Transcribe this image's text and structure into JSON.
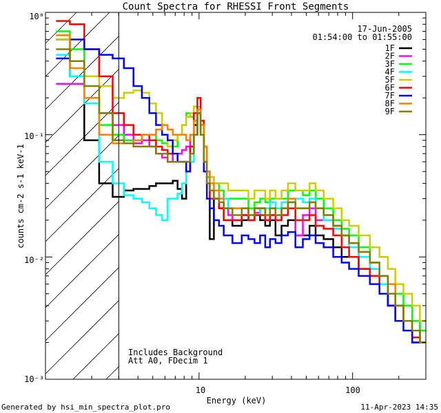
{
  "chart_data": {
    "type": "line",
    "title": "Count Spectra for RHESSI Front Segments",
    "xlabel": "Energy (keV)",
    "ylabel": "counts cm-2 s-1 keV-1",
    "xscale": "log",
    "yscale": "log",
    "xlim": [
      1.0,
      300.0
    ],
    "ylim": [
      0.001,
      1.0
    ],
    "x_tick_labels": [
      "10",
      "100"
    ],
    "y_tick_labels": [
      "10⁻³",
      "10⁻²",
      "10⁻¹",
      "10⁰"
    ],
    "date_text": "17-Jun-2005",
    "time_range_text": "01:54:00 to 01:55:00",
    "background_note": "Includes Background",
    "attenuator_note": "Att A0, FDecim 1",
    "footer_left": "Generated by hsi_min_spectra_plot.pro",
    "footer_right": "11-Apr-2023 14:35",
    "excluded_region_below_keV": 3.0,
    "energies_keV": [
      1.3,
      1.6,
      2.0,
      2.5,
      3.0,
      3.5,
      4.0,
      4.5,
      5.0,
      5.5,
      6.0,
      6.5,
      7.0,
      7.5,
      8.0,
      8.5,
      9.0,
      9.5,
      10.0,
      10.5,
      11.0,
      11.5,
      12.0,
      13.0,
      14.0,
      15.0,
      16.0,
      17.0,
      18.0,
      20.0,
      22.0,
      24.0,
      26.0,
      28.0,
      30.0,
      33.0,
      36.0,
      40.0,
      45.0,
      50.0,
      55.0,
      60.0,
      70.0,
      80.0,
      90.0,
      100.0,
      120.0,
      140.0,
      160.0,
      180.0,
      200.0,
      230.0,
      260.0,
      290.0
    ],
    "series": [
      {
        "name": "1F",
        "color": "#000000",
        "values": [
          0.6,
          0.3,
          0.09,
          0.04,
          0.031,
          0.035,
          0.036,
          0.036,
          0.038,
          0.04,
          0.04,
          0.04,
          0.042,
          0.036,
          0.03,
          0.05,
          0.08,
          0.12,
          0.17,
          0.12,
          0.08,
          0.04,
          0.014,
          0.03,
          0.025,
          0.02,
          0.02,
          0.018,
          0.018,
          0.02,
          0.02,
          0.025,
          0.02,
          0.018,
          0.02,
          0.015,
          0.018,
          0.02,
          0.015,
          0.015,
          0.018,
          0.015,
          0.014,
          0.012,
          0.01,
          0.01,
          0.008,
          0.007,
          0.006,
          0.004,
          0.003,
          0.003,
          0.002,
          0.0025
        ]
      },
      {
        "name": "2F",
        "color": "#ff00ff",
        "values": [
          0.26,
          0.26,
          0.2,
          0.15,
          0.12,
          0.1,
          0.085,
          0.09,
          0.08,
          0.07,
          0.065,
          0.06,
          0.07,
          0.07,
          0.075,
          0.08,
          0.1,
          0.13,
          0.17,
          0.1,
          0.08,
          0.04,
          0.035,
          0.03,
          0.025,
          0.025,
          0.022,
          0.02,
          0.02,
          0.022,
          0.02,
          0.023,
          0.025,
          0.02,
          0.022,
          0.02,
          0.025,
          0.028,
          0.015,
          0.022,
          0.025,
          0.02,
          0.02,
          0.018,
          0.015,
          0.013,
          0.01,
          0.008,
          0.006,
          0.005,
          0.004,
          0.003,
          0.003,
          0.002
        ]
      },
      {
        "name": "3F",
        "color": "#00ff00",
        "values": [
          0.7,
          0.5,
          0.2,
          0.12,
          0.1,
          0.09,
          0.09,
          0.1,
          0.1,
          0.09,
          0.085,
          0.08,
          0.08,
          0.1,
          0.12,
          0.15,
          0.14,
          0.13,
          0.15,
          0.1,
          0.06,
          0.045,
          0.045,
          0.04,
          0.035,
          0.03,
          0.03,
          0.03,
          0.03,
          0.03,
          0.025,
          0.028,
          0.03,
          0.028,
          0.03,
          0.03,
          0.03,
          0.035,
          0.035,
          0.032,
          0.035,
          0.03,
          0.025,
          0.02,
          0.017,
          0.015,
          0.012,
          0.009,
          0.007,
          0.006,
          0.005,
          0.004,
          0.003,
          0.0025
        ]
      },
      {
        "name": "4F",
        "color": "#00ffff",
        "values": [
          0.45,
          0.3,
          0.18,
          0.06,
          0.04,
          0.032,
          0.03,
          0.028,
          0.025,
          0.022,
          0.02,
          0.03,
          0.03,
          0.033,
          0.04,
          0.06,
          0.06,
          0.1,
          0.17,
          0.1,
          0.06,
          0.04,
          0.04,
          0.035,
          0.03,
          0.03,
          0.025,
          0.025,
          0.025,
          0.025,
          0.02,
          0.022,
          0.025,
          0.025,
          0.028,
          0.025,
          0.028,
          0.03,
          0.03,
          0.028,
          0.03,
          0.025,
          0.02,
          0.017,
          0.015,
          0.012,
          0.01,
          0.008,
          0.006,
          0.005,
          0.004,
          0.003,
          0.0025,
          0.002
        ]
      },
      {
        "name": "5F",
        "color": "#cccc00",
        "values": [
          0.6,
          0.4,
          0.3,
          0.25,
          0.2,
          0.22,
          0.23,
          0.22,
          0.18,
          0.15,
          0.1,
          0.08,
          0.09,
          0.1,
          0.12,
          0.14,
          0.15,
          0.17,
          0.16,
          0.12,
          0.08,
          0.05,
          0.045,
          0.04,
          0.04,
          0.04,
          0.035,
          0.035,
          0.035,
          0.035,
          0.03,
          0.035,
          0.035,
          0.03,
          0.035,
          0.03,
          0.035,
          0.04,
          0.035,
          0.035,
          0.04,
          0.035,
          0.03,
          0.025,
          0.02,
          0.018,
          0.015,
          0.012,
          0.01,
          0.008,
          0.006,
          0.005,
          0.004,
          0.003
        ]
      },
      {
        "name": "6F",
        "color": "#ff0000",
        "values": [
          0.85,
          0.8,
          0.5,
          0.3,
          0.15,
          0.12,
          0.1,
          0.1,
          0.09,
          0.08,
          0.075,
          0.07,
          0.07,
          0.06,
          0.06,
          0.05,
          0.08,
          0.15,
          0.2,
          0.13,
          0.08,
          0.05,
          0.03,
          0.03,
          0.025,
          0.02,
          0.02,
          0.02,
          0.02,
          0.022,
          0.02,
          0.022,
          0.022,
          0.02,
          0.022,
          0.02,
          0.022,
          0.025,
          0.02,
          0.02,
          0.022,
          0.018,
          0.017,
          0.015,
          0.012,
          0.01,
          0.008,
          0.007,
          0.005,
          0.004,
          0.003,
          0.003,
          0.0022,
          0.002
        ]
      },
      {
        "name": "7F",
        "color": "#0000ff",
        "values": [
          0.42,
          0.6,
          0.5,
          0.45,
          0.42,
          0.35,
          0.25,
          0.2,
          0.15,
          0.12,
          0.1,
          0.09,
          0.07,
          0.06,
          0.06,
          0.05,
          0.07,
          0.1,
          0.15,
          0.1,
          0.05,
          0.03,
          0.025,
          0.02,
          0.018,
          0.015,
          0.015,
          0.013,
          0.013,
          0.015,
          0.014,
          0.013,
          0.015,
          0.012,
          0.014,
          0.013,
          0.015,
          0.016,
          0.012,
          0.014,
          0.015,
          0.013,
          0.012,
          0.01,
          0.009,
          0.008,
          0.007,
          0.006,
          0.005,
          0.004,
          0.003,
          0.0025,
          0.002,
          0.002
        ]
      },
      {
        "name": "8F",
        "color": "#ff8000",
        "values": [
          0.65,
          0.35,
          0.2,
          0.1,
          0.085,
          0.085,
          0.09,
          0.1,
          0.1,
          0.11,
          0.12,
          0.11,
          0.1,
          0.1,
          0.1,
          0.09,
          0.1,
          0.13,
          0.16,
          0.12,
          0.08,
          0.05,
          0.04,
          0.035,
          0.03,
          0.025,
          0.025,
          0.025,
          0.025,
          0.025,
          0.022,
          0.025,
          0.025,
          0.022,
          0.025,
          0.022,
          0.025,
          0.03,
          0.025,
          0.025,
          0.028,
          0.025,
          0.022,
          0.018,
          0.015,
          0.013,
          0.011,
          0.009,
          0.007,
          0.006,
          0.004,
          0.003,
          0.0025,
          0.002
        ]
      },
      {
        "name": "9F",
        "color": "#808000",
        "values": [
          0.5,
          0.4,
          0.25,
          0.15,
          0.09,
          0.085,
          0.08,
          0.08,
          0.08,
          0.07,
          0.07,
          0.06,
          0.06,
          0.06,
          0.06,
          0.06,
          0.07,
          0.1,
          0.15,
          0.1,
          0.06,
          0.04,
          0.035,
          0.03,
          0.028,
          0.025,
          0.025,
          0.022,
          0.022,
          0.025,
          0.022,
          0.025,
          0.025,
          0.022,
          0.025,
          0.022,
          0.025,
          0.028,
          0.025,
          0.025,
          0.028,
          0.025,
          0.022,
          0.018,
          0.015,
          0.013,
          0.011,
          0.009,
          0.007,
          0.005,
          0.004,
          0.003,
          0.0025,
          0.002
        ]
      }
    ]
  }
}
